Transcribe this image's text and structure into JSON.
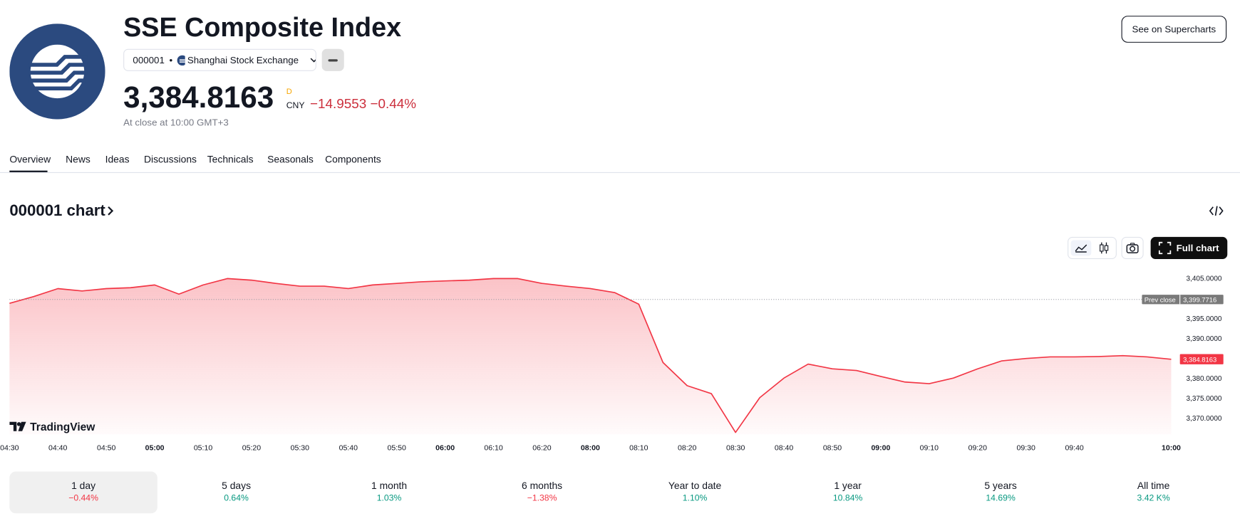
{
  "header": {
    "title": "SSE Composite Index",
    "symbol": "000001",
    "exchange": "Shanghai Stock Exchange",
    "price": "3,384.8163",
    "price_flag": "D",
    "currency": "CNY",
    "change": "−14.9553",
    "change_percent": "−0.44%",
    "close_note": "At close at 10:00 GMT+3",
    "button": "See on Supercharts"
  },
  "tabs": [
    "Overview",
    "News",
    "Ideas",
    "Discussions",
    "Technicals",
    "Seasonals",
    "Components"
  ],
  "chart_heading": "000001 chart",
  "full_chart": "Full chart",
  "watermark": "TradingView",
  "chart_data": {
    "type": "area",
    "color": "#f23645",
    "categories": [
      "04:30",
      null,
      "04:40",
      null,
      "04:50",
      null,
      "05:00",
      null,
      "05:10",
      null,
      "05:20",
      null,
      "05:30",
      null,
      "05:40",
      null,
      "05:50",
      null,
      "06:00",
      null,
      "06:10",
      null,
      "06:20",
      null,
      "08:00",
      null,
      "08:10",
      null,
      "08:20",
      null,
      "08:30",
      null,
      "08:40",
      null,
      "08:50",
      null,
      "09:00",
      null,
      "09:10",
      null,
      "09:20",
      null,
      "09:30",
      null,
      "09:40",
      null,
      null,
      null,
      "10:00"
    ],
    "values": [
      3398.8,
      3400.5,
      3402.5,
      3401.9,
      3402.5,
      3402.7,
      3403.4,
      3401.1,
      3403.4,
      3405.0,
      3404.6,
      3403.8,
      3403.1,
      3403.1,
      3402.5,
      3403.4,
      3403.8,
      3404.2,
      3404.4,
      3404.6,
      3405.0,
      3405.0,
      3403.8,
      3403.1,
      3402.5,
      3401.5,
      3398.6,
      3384.0,
      3378.2,
      3376.2,
      3366.5,
      3375.2,
      3380.1,
      3383.6,
      3382.4,
      3382.0,
      3380.5,
      3379.1,
      3378.7,
      3380.1,
      3382.4,
      3384.4,
      3385.0,
      3385.4,
      3385.4,
      3385.5,
      3385.7,
      3385.4,
      3384.8
    ],
    "ylim": [
      3366,
      3408.5
    ],
    "yticks": [
      {
        "value": 3405,
        "label": "3,405.0000"
      },
      {
        "value": 3395,
        "label": "3,395.0000"
      },
      {
        "value": 3390,
        "label": "3,390.0000"
      },
      {
        "value": 3380,
        "label": "3,380.0000"
      },
      {
        "value": 3375,
        "label": "3,375.0000"
      },
      {
        "value": 3370,
        "label": "3,370.0000"
      }
    ],
    "grid": false,
    "reference_line": {
      "name": "Prev close",
      "value": 3399.7716,
      "label": "3,399.7716"
    },
    "last_value": {
      "value": 3384.8163,
      "label": "3,384.8163"
    }
  },
  "periods": [
    {
      "label": "1 day",
      "change": "−0.44%"
    },
    {
      "label": "5 days",
      "change": "0.64%"
    },
    {
      "label": "1 month",
      "change": "1.03%"
    },
    {
      "label": "6 months",
      "change": "−1.38%"
    },
    {
      "label": "Year to date",
      "change": "1.10%"
    },
    {
      "label": "1 year",
      "change": "10.84%"
    },
    {
      "label": "5 years",
      "change": "14.69%"
    },
    {
      "label": "All time",
      "change": "3.42 K%"
    }
  ]
}
